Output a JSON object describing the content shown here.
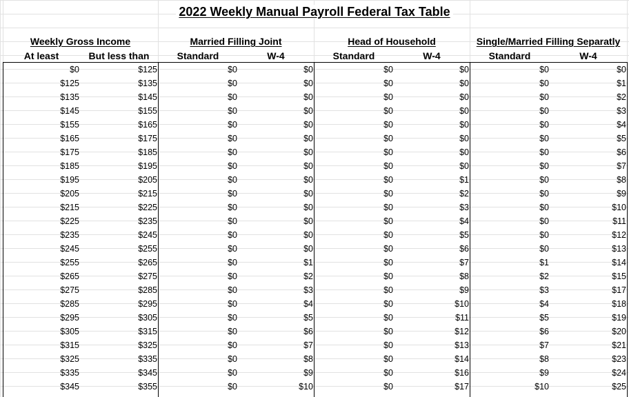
{
  "title": "2022 Weekly Manual Payroll Federal Tax Table",
  "groups": {
    "income": "Weekly Gross Income",
    "mfj": "Married Filling Joint",
    "hoh": "Head of Household",
    "single": "Single/Married Filling Separatly"
  },
  "subheaders": {
    "at_least": "At least",
    "but_less_than": "But less than",
    "mfj_standard": "Standard",
    "mfj_w4": "W-4",
    "hoh_standard": "Standard",
    "hoh_w4": "W-4",
    "single_standard": "Standard",
    "single_w4": "W-4"
  },
  "rows": [
    [
      "$0",
      "$125",
      "$0",
      "$0",
      "$0",
      "$0",
      "$0",
      "$0"
    ],
    [
      "$125",
      "$135",
      "$0",
      "$0",
      "$0",
      "$0",
      "$0",
      "$1"
    ],
    [
      "$135",
      "$145",
      "$0",
      "$0",
      "$0",
      "$0",
      "$0",
      "$2"
    ],
    [
      "$145",
      "$155",
      "$0",
      "$0",
      "$0",
      "$0",
      "$0",
      "$3"
    ],
    [
      "$155",
      "$165",
      "$0",
      "$0",
      "$0",
      "$0",
      "$0",
      "$4"
    ],
    [
      "$165",
      "$175",
      "$0",
      "$0",
      "$0",
      "$0",
      "$0",
      "$5"
    ],
    [
      "$175",
      "$185",
      "$0",
      "$0",
      "$0",
      "$0",
      "$0",
      "$6"
    ],
    [
      "$185",
      "$195",
      "$0",
      "$0",
      "$0",
      "$0",
      "$0",
      "$7"
    ],
    [
      "$195",
      "$205",
      "$0",
      "$0",
      "$0",
      "$1",
      "$0",
      "$8"
    ],
    [
      "$205",
      "$215",
      "$0",
      "$0",
      "$0",
      "$2",
      "$0",
      "$9"
    ],
    [
      "$215",
      "$225",
      "$0",
      "$0",
      "$0",
      "$3",
      "$0",
      "$10"
    ],
    [
      "$225",
      "$235",
      "$0",
      "$0",
      "$0",
      "$4",
      "$0",
      "$11"
    ],
    [
      "$235",
      "$245",
      "$0",
      "$0",
      "$0",
      "$5",
      "$0",
      "$12"
    ],
    [
      "$245",
      "$255",
      "$0",
      "$0",
      "$0",
      "$6",
      "$0",
      "$13"
    ],
    [
      "$255",
      "$265",
      "$0",
      "$1",
      "$0",
      "$7",
      "$1",
      "$14"
    ],
    [
      "$265",
      "$275",
      "$0",
      "$2",
      "$0",
      "$8",
      "$2",
      "$15"
    ],
    [
      "$275",
      "$285",
      "$0",
      "$3",
      "$0",
      "$9",
      "$3",
      "$17"
    ],
    [
      "$285",
      "$295",
      "$0",
      "$4",
      "$0",
      "$10",
      "$4",
      "$18"
    ],
    [
      "$295",
      "$305",
      "$0",
      "$5",
      "$0",
      "$11",
      "$5",
      "$19"
    ],
    [
      "$305",
      "$315",
      "$0",
      "$6",
      "$0",
      "$12",
      "$6",
      "$20"
    ],
    [
      "$315",
      "$325",
      "$0",
      "$7",
      "$0",
      "$13",
      "$7",
      "$21"
    ],
    [
      "$325",
      "$335",
      "$0",
      "$8",
      "$0",
      "$14",
      "$8",
      "$23"
    ],
    [
      "$335",
      "$345",
      "$0",
      "$9",
      "$0",
      "$16",
      "$9",
      "$24"
    ],
    [
      "$345",
      "$355",
      "$0",
      "$10",
      "$0",
      "$17",
      "$10",
      "$25"
    ]
  ]
}
